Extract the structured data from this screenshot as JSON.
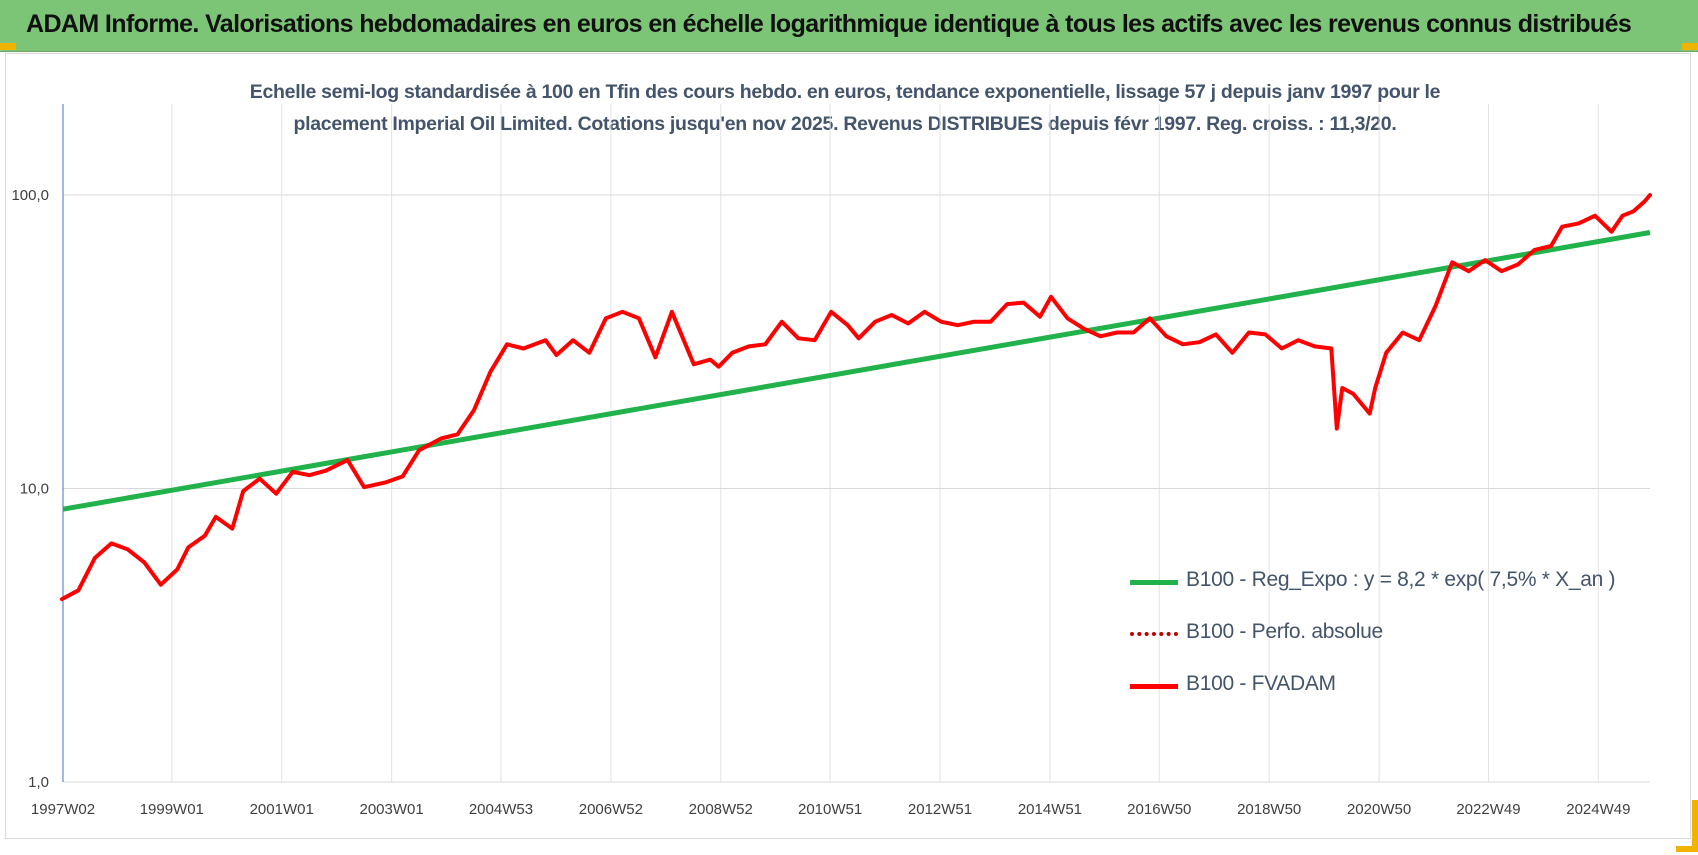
{
  "header": {
    "title": "ADAM Informe. Valorisations hebdomadaires en euros en échelle logarithmique identique à tous les actifs avec les revenus connus distribués"
  },
  "colors": {
    "banner": "#7cc576",
    "trend": "#21b24b",
    "fvadam": "#ff0000",
    "perfo": "#c00000",
    "subtitle": "#44546a"
  },
  "chart_data": {
    "type": "line",
    "subtitle_line1": "Echelle semi-log standardisée à 100 en Tfin des cours hebdo. en euros, tendance exponentielle, lissage 57 j depuis janv 1997 pour le",
    "subtitle_line2": "placement Imperial Oil Limited. Cotations jusqu'en nov 2025. Revenus DISTRIBUES depuis févr 1997. Reg. croiss. : 11,3/20.",
    "y_scale": "log",
    "ylim": [
      1,
      200
    ],
    "y_ticks": [
      {
        "value": 1,
        "label": "1,0"
      },
      {
        "value": 10,
        "label": "10,0"
      },
      {
        "value": 100,
        "label": "100,0"
      }
    ],
    "xlim": [
      1997.02,
      2025.9
    ],
    "x_ticks": [
      {
        "x": 1997.02,
        "label": "1997W02"
      },
      {
        "x": 1999.0,
        "label": "1999W01"
      },
      {
        "x": 2001.0,
        "label": "2001W01"
      },
      {
        "x": 2003.0,
        "label": "2003W01"
      },
      {
        "x": 2004.99,
        "label": "2004W53"
      },
      {
        "x": 2006.99,
        "label": "2006W52"
      },
      {
        "x": 2008.99,
        "label": "2008W52"
      },
      {
        "x": 2010.98,
        "label": "2010W51"
      },
      {
        "x": 2012.98,
        "label": "2012W51"
      },
      {
        "x": 2014.98,
        "label": "2014W51"
      },
      {
        "x": 2016.97,
        "label": "2016W50"
      },
      {
        "x": 2018.97,
        "label": "2018W50"
      },
      {
        "x": 2020.97,
        "label": "2020W50"
      },
      {
        "x": 2022.96,
        "label": "2022W49"
      },
      {
        "x": 2024.96,
        "label": "2024W49"
      }
    ],
    "grid": true,
    "legend_position": "bottom-right",
    "series": [
      {
        "name": "B100 - Reg_Expo : y = 8,2 * exp( 7,5% *  X_an )",
        "style": "solid",
        "x": [
          1997.02,
          2025.9
        ],
        "values": [
          8.5,
          74.5
        ]
      },
      {
        "name": "B100 - Perfo. absolue",
        "style": "dotted",
        "x": [],
        "values": []
      },
      {
        "name": "B100 - FVADAM",
        "style": "solid",
        "x": [
          1997.0,
          1997.3,
          1997.6,
          1997.9,
          1998.2,
          1998.5,
          1998.8,
          1999.1,
          1999.3,
          1999.6,
          1999.8,
          2000.1,
          2000.3,
          2000.6,
          2000.9,
          2001.2,
          2001.5,
          2001.8,
          2002.2,
          2002.5,
          2002.9,
          2003.2,
          2003.5,
          2003.9,
          2004.2,
          2004.5,
          2004.8,
          2005.1,
          2005.4,
          2005.8,
          2006.0,
          2006.3,
          2006.6,
          2006.9,
          2007.2,
          2007.5,
          2007.8,
          2008.1,
          2008.5,
          2008.8,
          2008.95,
          2009.2,
          2009.5,
          2009.8,
          2010.1,
          2010.4,
          2010.7,
          2011.0,
          2011.3,
          2011.5,
          2011.8,
          2012.1,
          2012.4,
          2012.7,
          2013.0,
          2013.3,
          2013.6,
          2013.9,
          2014.2,
          2014.5,
          2014.8,
          2015.0,
          2015.3,
          2015.6,
          2015.9,
          2016.2,
          2016.5,
          2016.8,
          2017.1,
          2017.4,
          2017.7,
          2018.0,
          2018.3,
          2018.6,
          2018.9,
          2019.2,
          2019.5,
          2019.8,
          2020.1,
          2020.2,
          2020.3,
          2020.5,
          2020.8,
          2020.9,
          2021.1,
          2021.4,
          2021.7,
          2022.0,
          2022.3,
          2022.6,
          2022.9,
          2023.2,
          2023.5,
          2023.8,
          2024.1,
          2024.3,
          2024.6,
          2024.9,
          2025.2,
          2025.4,
          2025.6,
          2025.8,
          2025.9
        ],
        "values": [
          4.2,
          4.5,
          5.8,
          6.5,
          6.2,
          5.6,
          4.7,
          5.3,
          6.3,
          6.9,
          8.0,
          7.3,
          9.8,
          10.8,
          9.6,
          11.4,
          11.1,
          11.5,
          12.5,
          10.1,
          10.5,
          11.0,
          13.5,
          14.8,
          15.3,
          18.5,
          25.0,
          31.0,
          30.0,
          32.0,
          28.5,
          32.0,
          29.0,
          38.0,
          40.0,
          38.0,
          28.0,
          40.0,
          26.5,
          27.5,
          26.0,
          29.0,
          30.5,
          31.0,
          37.0,
          32.5,
          32.0,
          40.0,
          36.0,
          32.5,
          37.0,
          39.0,
          36.5,
          40.0,
          37.0,
          36.0,
          37.0,
          37.0,
          42.5,
          43.0,
          38.5,
          45.0,
          38.0,
          35.0,
          33.0,
          34.0,
          34.0,
          38.0,
          33.0,
          31.0,
          31.5,
          33.5,
          29.0,
          34.0,
          33.5,
          30.0,
          32.0,
          30.5,
          30.0,
          16.0,
          22.0,
          21.0,
          18.0,
          22.0,
          29.0,
          34.0,
          32.0,
          42.0,
          59.0,
          55.0,
          60.0,
          55.0,
          58.0,
          65.0,
          67.0,
          78.0,
          80.0,
          85.0,
          75.0,
          85.0,
          88.0,
          95.0,
          100.0
        ]
      }
    ]
  }
}
